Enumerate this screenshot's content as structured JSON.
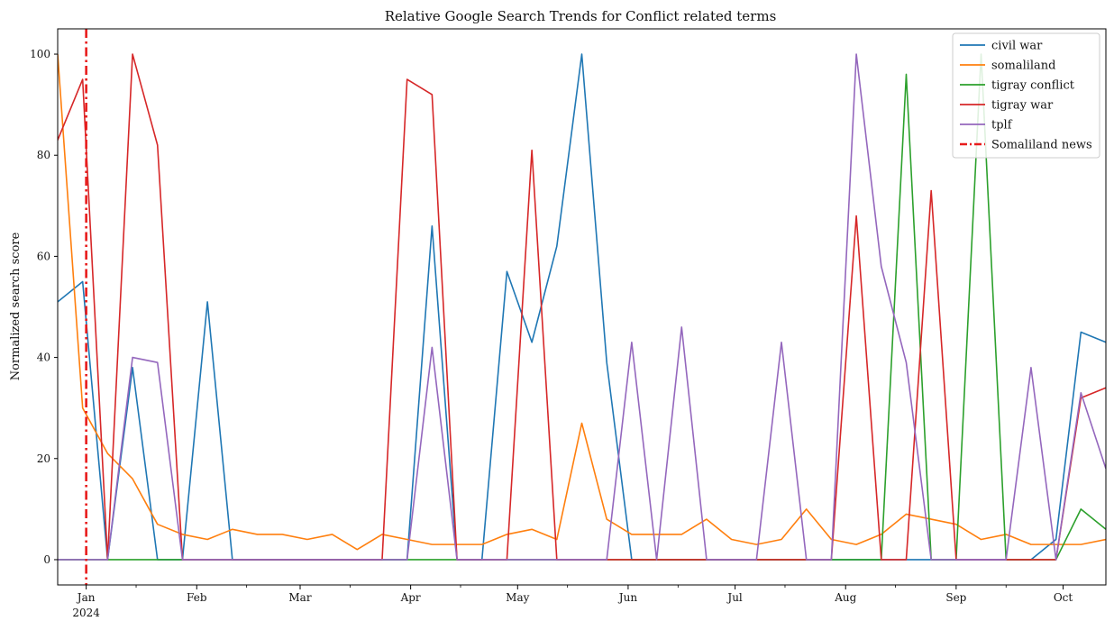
{
  "chart_data": {
    "type": "line",
    "title": "Relative Google Search Trends for Conflict related terms",
    "xlabel": "",
    "ylabel": "Normalized search score",
    "x_type": "date",
    "xlim": [
      "2023-12-24",
      "2024-10-13"
    ],
    "ylim": [
      -5,
      105
    ],
    "y_ticks": [
      0,
      20,
      40,
      60,
      80,
      100
    ],
    "x_ticks": [
      {
        "date": "2024-01-01",
        "label": "Jan",
        "sublabel": "2024"
      },
      {
        "date": "2024-02-01",
        "label": "Feb",
        "sublabel": ""
      },
      {
        "date": "2024-03-01",
        "label": "Mar",
        "sublabel": ""
      },
      {
        "date": "2024-04-01",
        "label": "Apr",
        "sublabel": ""
      },
      {
        "date": "2024-05-01",
        "label": "May",
        "sublabel": ""
      },
      {
        "date": "2024-06-01",
        "label": "Jun",
        "sublabel": ""
      },
      {
        "date": "2024-07-01",
        "label": "Jul",
        "sublabel": ""
      },
      {
        "date": "2024-08-01",
        "label": "Aug",
        "sublabel": ""
      },
      {
        "date": "2024-09-01",
        "label": "Sep",
        "sublabel": ""
      },
      {
        "date": "2024-10-01",
        "label": "Oct",
        "sublabel": ""
      }
    ],
    "x": [
      "2023-12-24",
      "2023-12-31",
      "2024-01-07",
      "2024-01-14",
      "2024-01-21",
      "2024-01-28",
      "2024-02-04",
      "2024-02-11",
      "2024-02-18",
      "2024-02-25",
      "2024-03-03",
      "2024-03-10",
      "2024-03-17",
      "2024-03-24",
      "2024-03-31",
      "2024-04-07",
      "2024-04-14",
      "2024-04-21",
      "2024-04-28",
      "2024-05-05",
      "2024-05-12",
      "2024-05-19",
      "2024-05-26",
      "2024-06-02",
      "2024-06-09",
      "2024-06-16",
      "2024-06-23",
      "2024-06-30",
      "2024-07-07",
      "2024-07-14",
      "2024-07-21",
      "2024-07-28",
      "2024-08-04",
      "2024-08-11",
      "2024-08-18",
      "2024-08-25",
      "2024-09-01",
      "2024-09-08",
      "2024-09-15",
      "2024-09-22",
      "2024-09-29",
      "2024-10-06",
      "2024-10-13"
    ],
    "series": [
      {
        "name": "civil war",
        "color": "#1f77b4",
        "values": [
          51,
          55,
          0,
          38,
          0,
          0,
          51,
          0,
          0,
          0,
          0,
          0,
          0,
          0,
          0,
          66,
          0,
          0,
          57,
          43,
          62,
          100,
          39,
          0,
          0,
          0,
          0,
          0,
          0,
          0,
          0,
          0,
          0,
          0,
          0,
          0,
          0,
          0,
          0,
          0,
          4,
          45,
          43
        ]
      },
      {
        "name": "somaliland",
        "color": "#ff7f0e",
        "values": [
          100,
          30,
          21,
          16,
          7,
          5,
          4,
          6,
          5,
          5,
          4,
          5,
          2,
          5,
          4,
          3,
          3,
          3,
          5,
          6,
          4,
          27,
          8,
          5,
          5,
          5,
          8,
          4,
          3,
          4,
          10,
          4,
          3,
          5,
          9,
          8,
          7,
          4,
          5,
          3,
          3,
          3,
          4
        ]
      },
      {
        "name": "tigray conflict",
        "color": "#2ca02c",
        "values": [
          0,
          0,
          0,
          0,
          0,
          0,
          0,
          0,
          0,
          0,
          0,
          0,
          0,
          0,
          0,
          0,
          0,
          0,
          0,
          0,
          0,
          0,
          0,
          0,
          0,
          0,
          0,
          0,
          0,
          0,
          0,
          0,
          0,
          0,
          96,
          0,
          0,
          100,
          0,
          0,
          0,
          10,
          6
        ]
      },
      {
        "name": "tigray war",
        "color": "#d62728",
        "values": [
          83,
          95,
          0,
          100,
          82,
          0,
          0,
          0,
          0,
          0,
          0,
          0,
          0,
          0,
          95,
          92,
          0,
          0,
          0,
          81,
          0,
          0,
          0,
          0,
          0,
          0,
          0,
          0,
          0,
          0,
          0,
          0,
          68,
          0,
          0,
          73,
          0,
          0,
          0,
          0,
          0,
          32,
          34
        ]
      },
      {
        "name": "tplf",
        "color": "#9467bd",
        "values": [
          0,
          0,
          0,
          40,
          39,
          0,
          0,
          0,
          0,
          0,
          0,
          0,
          0,
          0,
          0,
          42,
          0,
          0,
          0,
          0,
          0,
          0,
          0,
          43,
          0,
          46,
          0,
          0,
          0,
          43,
          0,
          0,
          100,
          58,
          39,
          0,
          0,
          0,
          0,
          38,
          0,
          33,
          18
        ]
      }
    ],
    "annotations": [
      {
        "type": "vline",
        "date": "2024-01-01",
        "name": "Somaliland news",
        "color": "#e81c1c",
        "style": "dash-dot"
      }
    ],
    "legend": {
      "position": "top-right",
      "entries": [
        "civil war",
        "somaliland",
        "tigray conflict",
        "tigray war",
        "tplf",
        "Somaliland news"
      ]
    },
    "grid": false
  }
}
